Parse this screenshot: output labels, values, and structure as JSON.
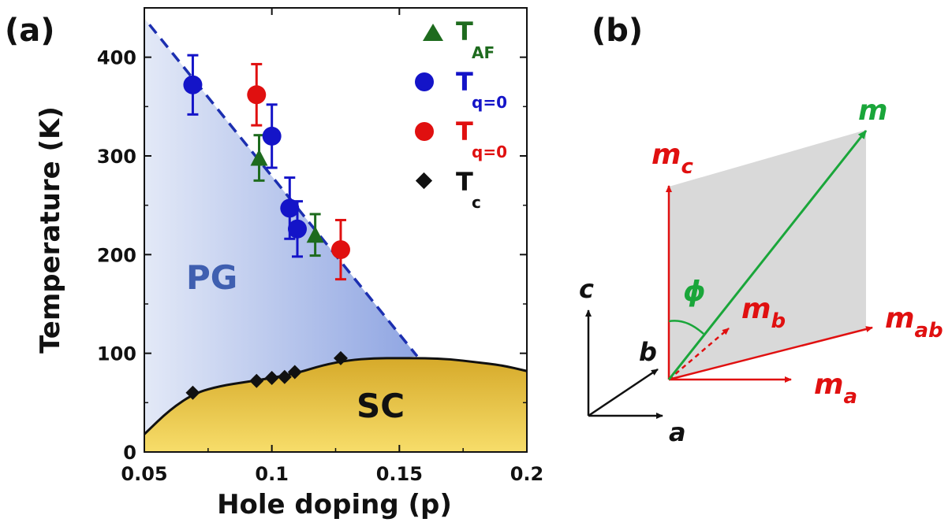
{
  "panels": {
    "a_label": "(a)",
    "b_label": "(b)"
  },
  "chart_data": {
    "type": "scatter",
    "xlabel": "Hole doping (p)",
    "ylabel": "Temperature (K)",
    "xlim": [
      0.05,
      0.2
    ],
    "ylim": [
      0,
      450
    ],
    "xticks": [
      "0.05",
      "0.1",
      "0.15",
      "0.2"
    ],
    "xtick_values": [
      0.05,
      0.1,
      0.15,
      0.2
    ],
    "yticks": [
      "0",
      "100",
      "200",
      "300",
      "400"
    ],
    "ytick_values": [
      0,
      100,
      200,
      300,
      400
    ],
    "legend_position": "top-right",
    "regions": [
      {
        "label": "PG",
        "color": "#3f5fb0"
      },
      {
        "label": "SC",
        "color": "#111111"
      }
    ],
    "series": [
      {
        "name": "T",
        "subscript": "AF",
        "marker": "triangle",
        "color": "#1e6b1e",
        "points": [
          {
            "x": 0.095,
            "y": 298,
            "err": 23
          },
          {
            "x": 0.117,
            "y": 220,
            "err": 21
          }
        ]
      },
      {
        "name": "T",
        "subscript": "q=0",
        "marker": "circle",
        "color": "#1414c8",
        "points": [
          {
            "x": 0.069,
            "y": 372,
            "err": 30
          },
          {
            "x": 0.1,
            "y": 320,
            "err": 32
          },
          {
            "x": 0.107,
            "y": 247,
            "err": 31
          },
          {
            "x": 0.11,
            "y": 226,
            "err": 28
          }
        ]
      },
      {
        "name": "T",
        "subscript": "q=0",
        "marker": "circle",
        "color": "#e01010",
        "points": [
          {
            "x": 0.094,
            "y": 362,
            "err": 31
          },
          {
            "x": 0.127,
            "y": 205,
            "err": 30
          }
        ]
      },
      {
        "name": "T",
        "subscript": "c",
        "marker": "diamond",
        "color": "#111111",
        "points": [
          {
            "x": 0.069,
            "y": 60
          },
          {
            "x": 0.094,
            "y": 72
          },
          {
            "x": 0.1,
            "y": 75
          },
          {
            "x": 0.105,
            "y": 76
          },
          {
            "x": 0.109,
            "y": 81
          },
          {
            "x": 0.127,
            "y": 95
          }
        ]
      }
    ],
    "pseudogap_line": {
      "x": [
        0.052,
        0.157
      ],
      "y": [
        433,
        97
      ],
      "style": "dashed",
      "color": "#1c2fb0"
    },
    "tc_dome": {
      "x": [
        0.05,
        0.06,
        0.07,
        0.08,
        0.09,
        0.1,
        0.11,
        0.12,
        0.13,
        0.14,
        0.15,
        0.16,
        0.17,
        0.18,
        0.19,
        0.2
      ],
      "y": [
        18,
        43,
        60,
        67,
        71,
        75,
        80,
        88,
        93,
        95,
        95,
        95,
        94,
        91,
        88,
        82
      ]
    }
  },
  "diagram_b": {
    "axes": {
      "c": "c",
      "b": "b",
      "a": "a"
    },
    "vectors": {
      "m": "m",
      "mc": {
        "base": "m",
        "sub": "c"
      },
      "mb": {
        "base": "m",
        "sub": "b"
      },
      "mab": {
        "base": "m",
        "sub": "ab"
      },
      "ma": {
        "base": "m",
        "sub": "a"
      }
    },
    "angle_label": "ϕ",
    "colors": {
      "red": "#e01010",
      "green": "#1aa63a",
      "plane": "#d9d9d9",
      "black": "#111111"
    }
  }
}
